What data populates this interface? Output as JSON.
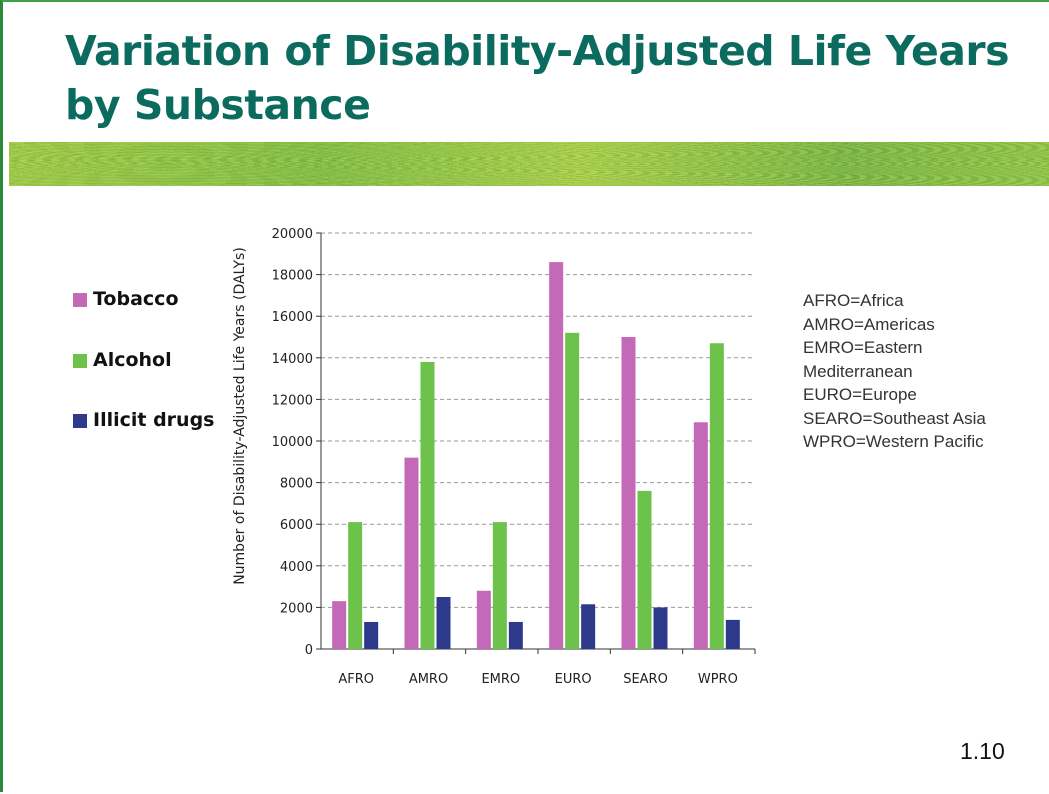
{
  "title": "Variation of Disability-Adjusted Life Years by Substance",
  "page_number": "1.10",
  "abbreviations": [
    "AFRO=Africa",
    "AMRO=Americas",
    "EMRO=Eastern",
    "Mediterranean",
    "EURO=Europe",
    "SEARO=Southeast Asia",
    "WPRO=Western Pacific"
  ],
  "colors": {
    "title": "#0b6b5e",
    "tobacco": "#c468b8",
    "alcohol": "#6cc24a",
    "illicit": "#2d3a8c"
  },
  "chart_data": {
    "type": "bar",
    "title": "",
    "xlabel": "",
    "ylabel": "Number of Disability-Adjusted Life Years (DALYs)",
    "categories": [
      "AFRO",
      "AMRO",
      "EMRO",
      "EURO",
      "SEARO",
      "WPRO"
    ],
    "ylim": [
      0,
      20000
    ],
    "yticks": [
      "0",
      "2000",
      "4000",
      "6000",
      "8000",
      "10000",
      "12000",
      "14000",
      "16000",
      "18000",
      "20000"
    ],
    "grid": true,
    "legend_position": "left",
    "series": [
      {
        "name": "Tobacco",
        "color": "#c468b8",
        "values": [
          2300,
          9200,
          2800,
          18600,
          15000,
          10900
        ]
      },
      {
        "name": "Alcohol",
        "color": "#6cc24a",
        "values": [
          6100,
          13800,
          6100,
          15200,
          7600,
          14700
        ]
      },
      {
        "name": "Illicit drugs",
        "color": "#2d3a8c",
        "values": [
          1300,
          2500,
          1300,
          2150,
          2000,
          1400
        ]
      }
    ]
  }
}
